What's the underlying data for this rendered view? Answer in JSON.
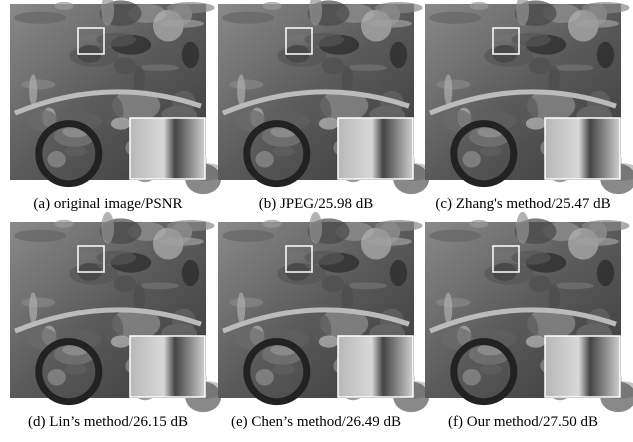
{
  "panels": [
    {
      "caption": "(a) original image/PSNR"
    },
    {
      "caption": "(b) JPEG/25.98 dB"
    },
    {
      "caption": "(c) Zhang's method/25.47 dB"
    },
    {
      "caption": "(d) Lin’s method/26.15 dB"
    },
    {
      "caption": "(e) Chen’s method/26.49 dB"
    },
    {
      "caption": "(f) Our method/27.50 dB"
    }
  ]
}
